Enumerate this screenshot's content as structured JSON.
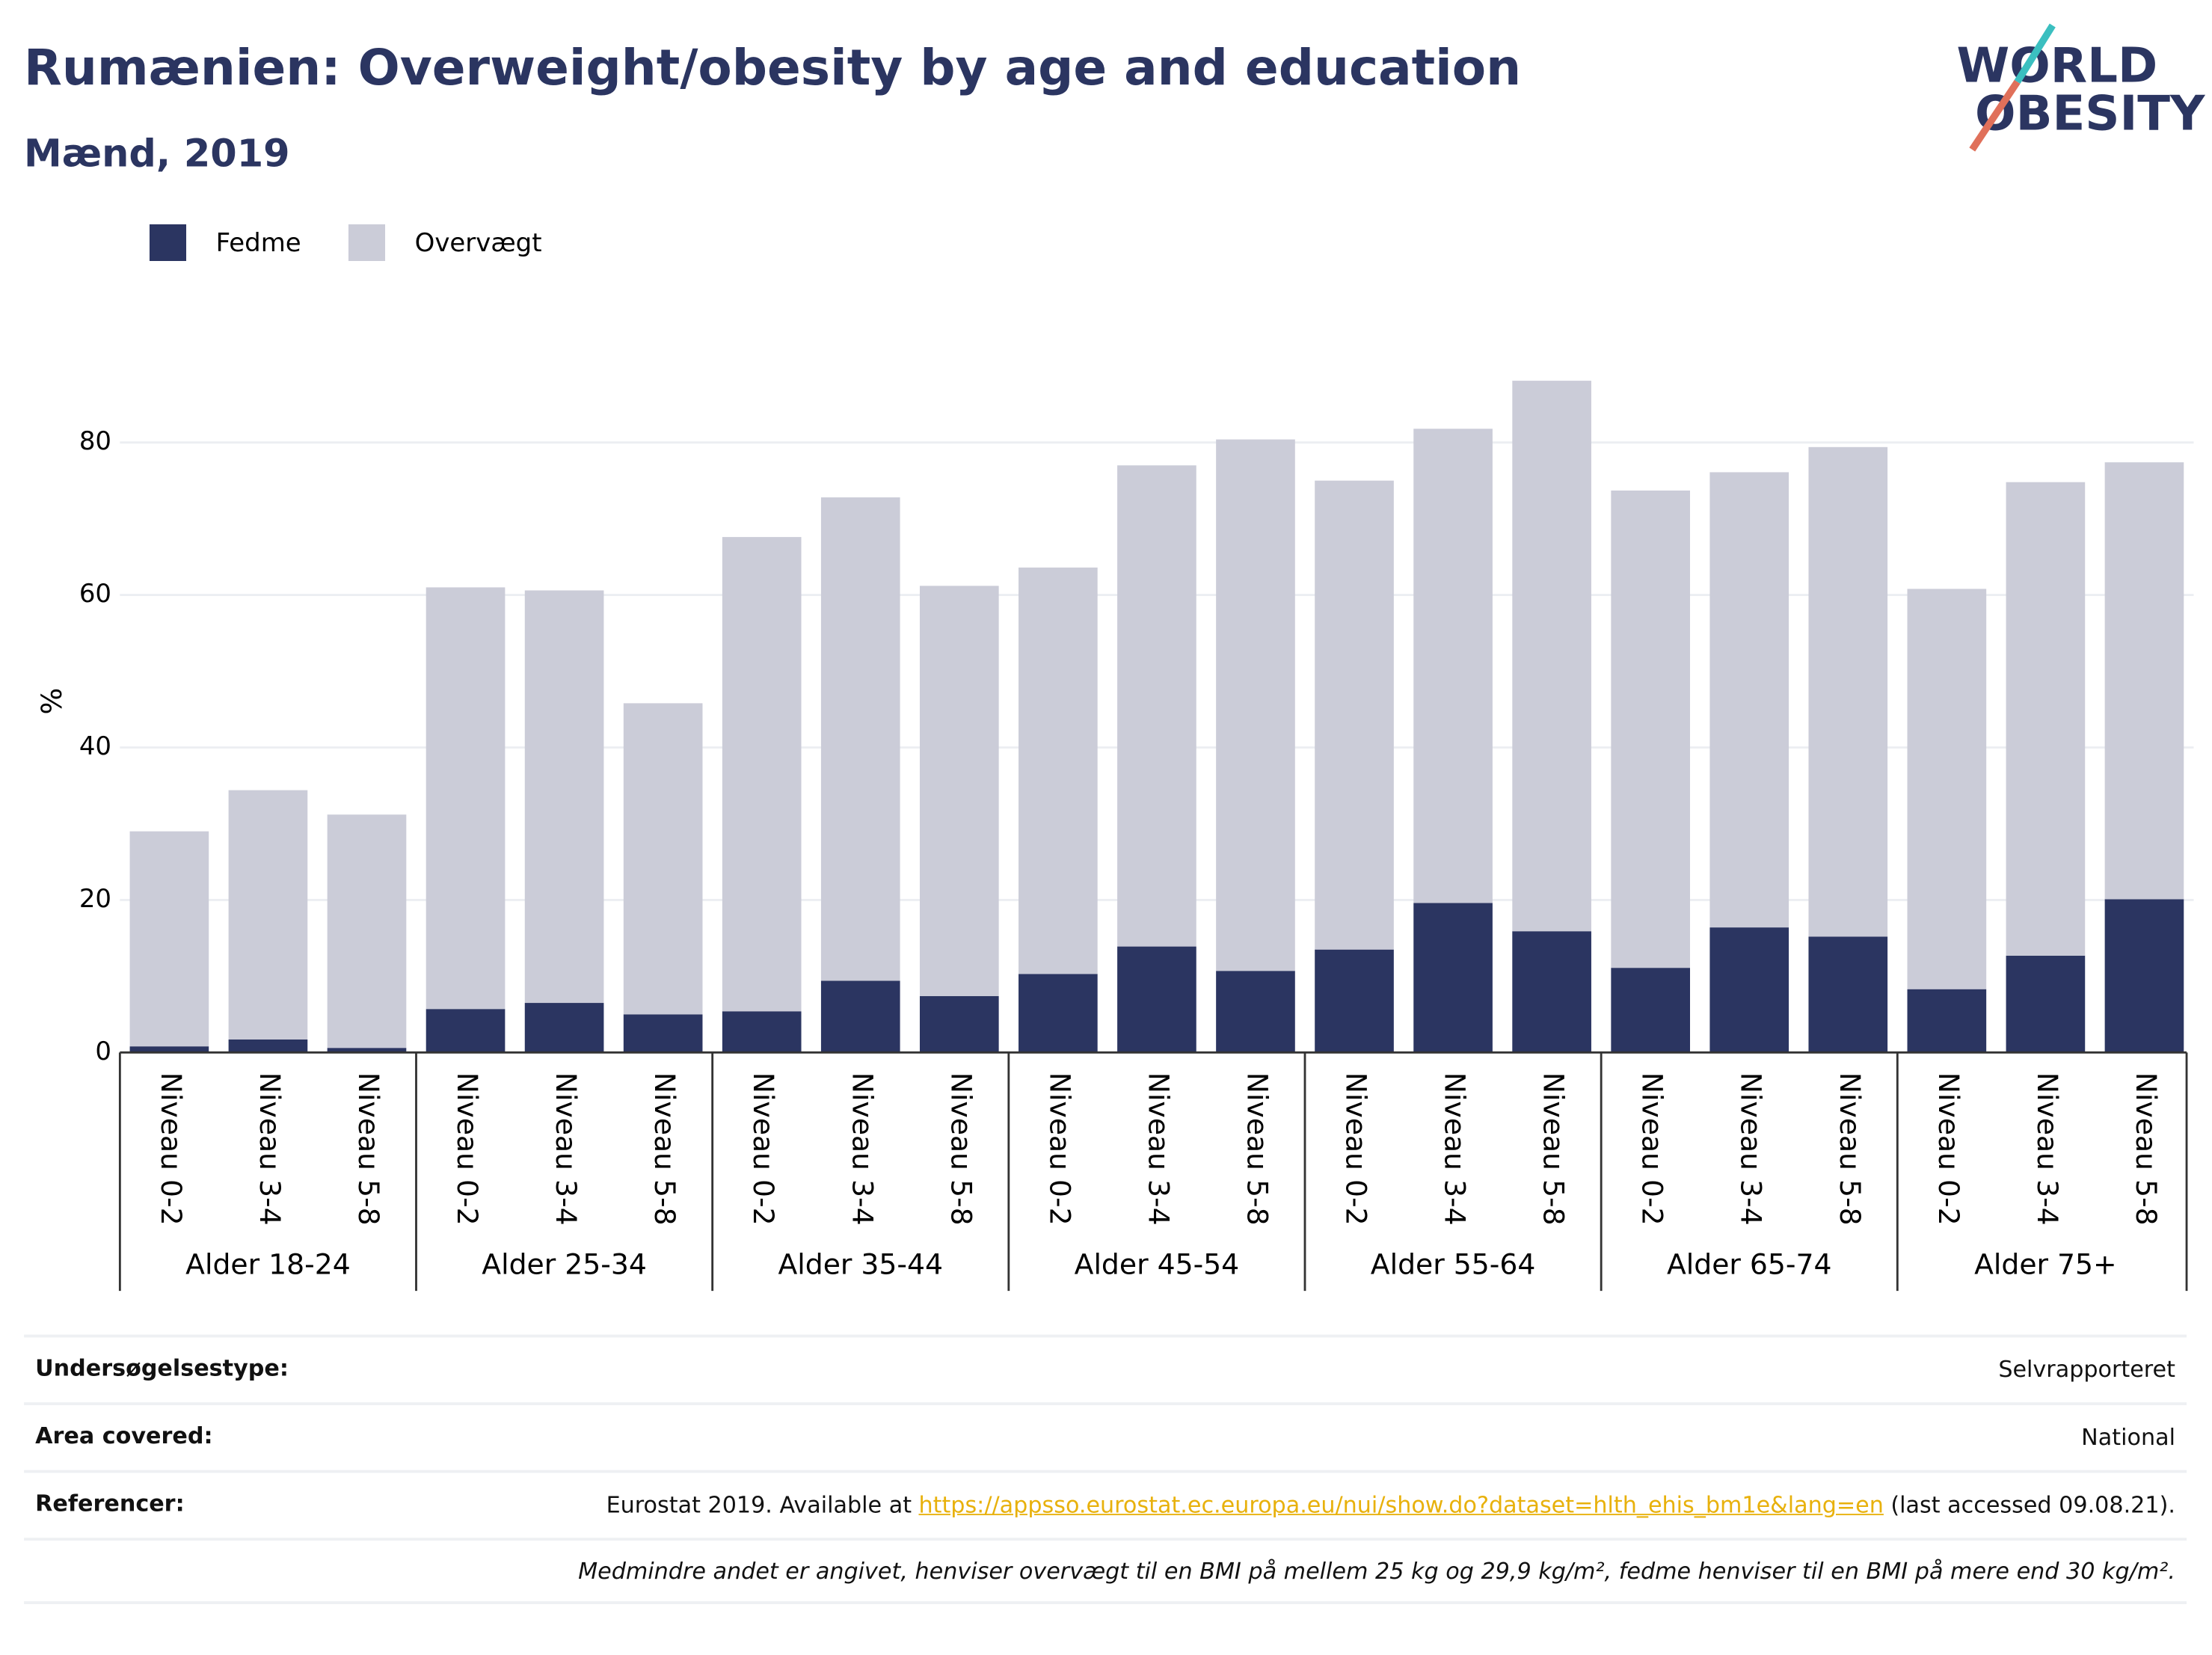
{
  "chart_data": {
    "type": "bar",
    "stacked": true,
    "title": "Rumænien: Overweight/obesity by age and education",
    "subtitle": "Mænd, 2019",
    "y_label": "%",
    "categories": [
      "Niveau 0-2",
      "Niveau 3-4",
      "Niveau 5-8",
      "Niveau 0-2",
      "Niveau 3-4",
      "Niveau 5-8",
      "Niveau 0-2",
      "Niveau 3-4",
      "Niveau 5-8",
      "Niveau 0-2",
      "Niveau 3-4",
      "Niveau 5-8",
      "Niveau 0-2",
      "Niveau 3-4",
      "Niveau 5-8",
      "Niveau 0-2",
      "Niveau 3-4",
      "Niveau 5-8",
      "Niveau 0-2",
      "Niveau 3-4",
      "Niveau 5-8"
    ],
    "groups": [
      "Alder 18-24",
      "Alder 25-34",
      "Alder 35-44",
      "Alder 45-54",
      "Alder 55-64",
      "Alder 65-74",
      "Alder 75+"
    ],
    "series": [
      {
        "name": "Fedme",
        "color": "#2b3561",
        "values": [
          0.8,
          1.7,
          0.6,
          5.7,
          6.5,
          5.0,
          5.4,
          9.4,
          7.4,
          10.3,
          13.9,
          10.7,
          13.5,
          19.6,
          15.9,
          11.1,
          16.4,
          15.2,
          8.3,
          12.7,
          20.1
        ]
      },
      {
        "name": "Overvægt",
        "color": "#cbccd8",
        "values": [
          28.2,
          32.7,
          30.6,
          55.3,
          54.1,
          40.8,
          62.2,
          63.4,
          53.8,
          53.3,
          63.1,
          69.7,
          61.5,
          62.2,
          72.2,
          62.6,
          59.7,
          64.2,
          52.5,
          62.1,
          57.3
        ]
      }
    ],
    "ylim": [
      0,
      89
    ],
    "yticks": [
      0,
      20,
      40,
      60,
      80
    ],
    "grid": true,
    "legend": "top-left"
  },
  "logo": [
    "WORLD",
    "OBESITY"
  ],
  "info": {
    "rows": [
      {
        "label": "Undersøgelsestype:",
        "value": [
          "Selvrapporteret"
        ]
      },
      {
        "label": "Area covered:",
        "value": [
          "National"
        ]
      },
      {
        "label": "Referencer:",
        "value": [
          "Eurostat 2019. Available at",
          "https://appsso.eurostat.ec.europa.eu/nui/show.do?dataset=hlth_ehis_bm1e&lang=en",
          "(last accessed 09.08.21)."
        ]
      }
    ],
    "footnote": "Medmindre andet er angivet, henviser overvægt til en BMI på mellem 25 kg og 29,9 kg/m², fedme henviser til en BMI på mere end 30 kg/m²."
  }
}
